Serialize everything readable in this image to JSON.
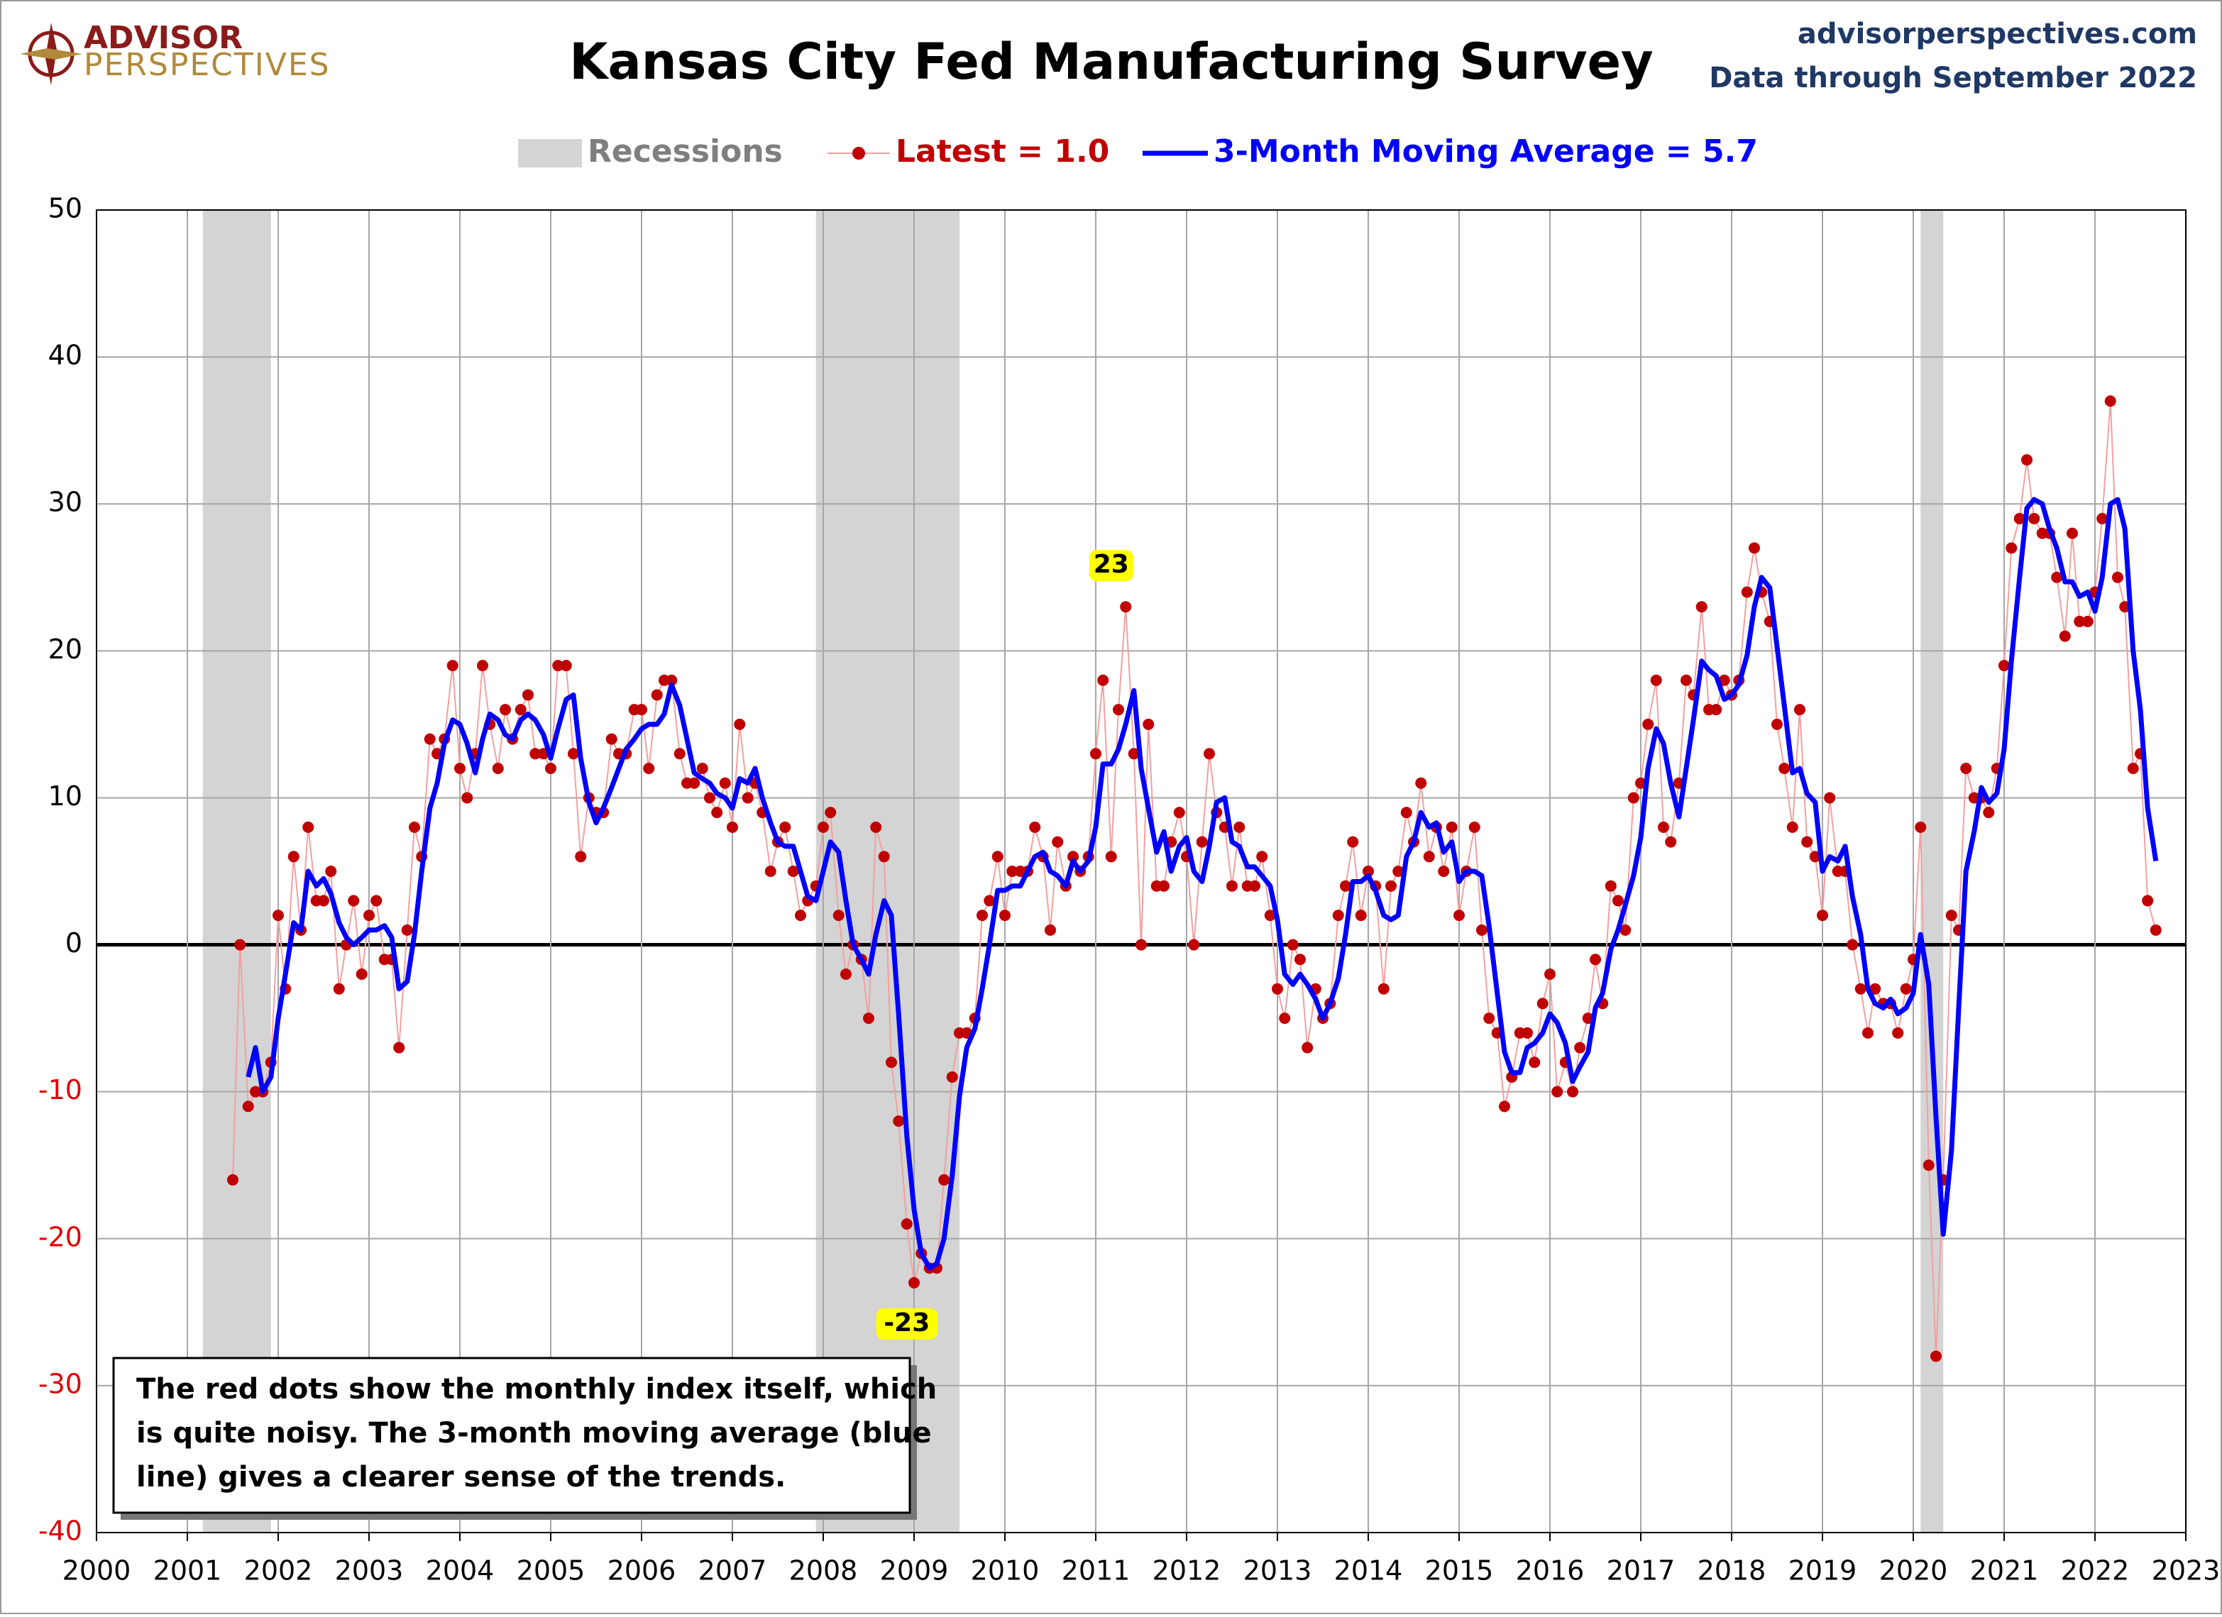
{
  "header": {
    "logo_top": "ADVISOR",
    "logo_bottom": "PERSPECTIVES",
    "site": "advisorperspectives.com",
    "data_note": "Data through September 2022"
  },
  "chart_data": {
    "type": "line",
    "title": "Kansas City Fed Manufacturing Survey",
    "xlim": [
      2000,
      2023
    ],
    "xticks": [
      2000,
      2001,
      2002,
      2003,
      2004,
      2005,
      2006,
      2007,
      2008,
      2009,
      2010,
      2011,
      2012,
      2013,
      2014,
      2015,
      2016,
      2017,
      2018,
      2019,
      2020,
      2021,
      2022,
      2023
    ],
    "ylim": [
      -40,
      50
    ],
    "yticks": [
      -40,
      -30,
      -20,
      -10,
      0,
      10,
      20,
      30,
      40,
      50
    ],
    "grid": true,
    "negative_tick_color": "#e00000",
    "recession_label": "Recessions",
    "recession_color": "#d4d4d4",
    "recessions": [
      [
        2001.17,
        2001.92
      ],
      [
        2007.92,
        2009.5
      ],
      [
        2020.08,
        2020.33
      ]
    ],
    "x": [
      2001.5,
      2001.58,
      2001.67,
      2001.75,
      2001.83,
      2001.92,
      2002,
      2002.08,
      2002.17,
      2002.25,
      2002.33,
      2002.42,
      2002.5,
      2002.58,
      2002.67,
      2002.75,
      2002.83,
      2002.92,
      2003,
      2003.08,
      2003.17,
      2003.25,
      2003.33,
      2003.42,
      2003.5,
      2003.58,
      2003.67,
      2003.75,
      2003.83,
      2003.92,
      2004,
      2004.08,
      2004.17,
      2004.25,
      2004.33,
      2004.42,
      2004.5,
      2004.58,
      2004.67,
      2004.75,
      2004.83,
      2004.92,
      2005,
      2005.08,
      2005.17,
      2005.25,
      2005.33,
      2005.42,
      2005.5,
      2005.58,
      2005.67,
      2005.75,
      2005.83,
      2005.92,
      2006,
      2006.08,
      2006.17,
      2006.25,
      2006.33,
      2006.42,
      2006.5,
      2006.58,
      2006.67,
      2006.75,
      2006.83,
      2006.92,
      2007,
      2007.08,
      2007.17,
      2007.25,
      2007.33,
      2007.42,
      2007.5,
      2007.58,
      2007.67,
      2007.75,
      2007.83,
      2007.92,
      2008,
      2008.08,
      2008.17,
      2008.25,
      2008.33,
      2008.42,
      2008.5,
      2008.58,
      2008.67,
      2008.75,
      2008.83,
      2008.92,
      2009,
      2009.08,
      2009.17,
      2009.25,
      2009.33,
      2009.42,
      2009.5,
      2009.58,
      2009.67,
      2009.75,
      2009.83,
      2009.92,
      2010,
      2010.08,
      2010.17,
      2010.25,
      2010.33,
      2010.42,
      2010.5,
      2010.58,
      2010.67,
      2010.75,
      2010.83,
      2010.92,
      2011,
      2011.08,
      2011.17,
      2011.25,
      2011.33,
      2011.42,
      2011.5,
      2011.58,
      2011.67,
      2011.75,
      2011.83,
      2011.92,
      2012,
      2012.08,
      2012.17,
      2012.25,
      2012.33,
      2012.42,
      2012.5,
      2012.58,
      2012.67,
      2012.75,
      2012.83,
      2012.92,
      2013,
      2013.08,
      2013.17,
      2013.25,
      2013.33,
      2013.42,
      2013.5,
      2013.58,
      2013.67,
      2013.75,
      2013.83,
      2013.92,
      2014,
      2014.08,
      2014.17,
      2014.25,
      2014.33,
      2014.42,
      2014.5,
      2014.58,
      2014.67,
      2014.75,
      2014.83,
      2014.92,
      2015,
      2015.08,
      2015.17,
      2015.25,
      2015.33,
      2015.42,
      2015.5,
      2015.58,
      2015.67,
      2015.75,
      2015.83,
      2015.92,
      2016,
      2016.08,
      2016.17,
      2016.25,
      2016.33,
      2016.42,
      2016.5,
      2016.58,
      2016.67,
      2016.75,
      2016.83,
      2016.92,
      2017,
      2017.08,
      2017.17,
      2017.25,
      2017.33,
      2017.42,
      2017.5,
      2017.58,
      2017.67,
      2017.75,
      2017.83,
      2017.92,
      2018,
      2018.08,
      2018.17,
      2018.25,
      2018.33,
      2018.42,
      2018.5,
      2018.58,
      2018.67,
      2018.75,
      2018.83,
      2018.92,
      2019,
      2019.08,
      2019.17,
      2019.25,
      2019.33,
      2019.42,
      2019.5,
      2019.58,
      2019.67,
      2019.75,
      2019.83,
      2019.92,
      2020,
      2020.08,
      2020.17,
      2020.25,
      2020.33,
      2020.42,
      2020.5,
      2020.58,
      2020.67,
      2020.75,
      2020.83,
      2020.92,
      2021,
      2021.08,
      2021.17,
      2021.25,
      2021.33,
      2021.42,
      2021.5,
      2021.58,
      2021.67,
      2021.75,
      2021.83,
      2021.92,
      2022,
      2022.08,
      2022.17,
      2022.25,
      2022.33,
      2022.42,
      2022.5,
      2022.58,
      2022.67
    ],
    "series": [
      {
        "name": "Latest = 1.0",
        "color": "#c00000",
        "line_color": "#f2a0a0",
        "values": [
          -16,
          0,
          -11,
          -10,
          -10,
          -8,
          2,
          -3,
          6,
          1,
          8,
          3,
          3,
          5,
          -3,
          0,
          3,
          -2,
          2,
          3,
          -1,
          -1,
          -7,
          1,
          8,
          6,
          14,
          13,
          14,
          19,
          12,
          10,
          13,
          19,
          15,
          12,
          16,
          14,
          16,
          17,
          13,
          13,
          12,
          19,
          19,
          13,
          6,
          10,
          9,
          9,
          14,
          13,
          13,
          16,
          16,
          12,
          17,
          18,
          18,
          13,
          11,
          11,
          12,
          10,
          9,
          11,
          8,
          15,
          10,
          11,
          9,
          5,
          7,
          8,
          5,
          2,
          3,
          4,
          8,
          9,
          2,
          -2,
          0,
          -1,
          -5,
          8,
          6,
          -8,
          -12,
          -19,
          -23,
          -21,
          -22,
          -22,
          -16,
          -9,
          -6,
          -6,
          -5,
          2,
          3,
          6,
          2,
          5,
          5,
          5,
          8,
          6,
          1,
          7,
          4,
          6,
          5,
          6,
          13,
          18,
          6,
          16,
          23,
          13,
          0,
          15,
          4,
          4,
          7,
          9,
          6,
          0,
          7,
          13,
          9,
          8,
          4,
          8,
          4,
          4,
          6,
          2,
          -3,
          -5,
          0,
          -1,
          -7,
          -3,
          -5,
          -4,
          2,
          4,
          7,
          2,
          5,
          4,
          -3,
          4,
          5,
          9,
          7,
          11,
          6,
          8,
          5,
          8,
          2,
          5,
          8,
          1,
          -5,
          -6,
          -11,
          -9,
          -6,
          -6,
          -8,
          -4,
          -2,
          -10,
          -8,
          -10,
          -7,
          -5,
          -1,
          -4,
          4,
          3,
          1,
          10,
          11,
          15,
          18,
          8,
          7,
          11,
          18,
          17,
          23,
          16,
          16,
          18,
          17,
          18,
          24,
          27,
          24,
          22,
          15,
          12,
          8,
          16,
          7,
          6,
          2,
          10,
          5,
          5,
          0,
          -3,
          -6,
          -3,
          -4,
          -4,
          -6,
          -3,
          -1,
          8,
          -15,
          -28,
          -16,
          2,
          1,
          12,
          10,
          10,
          9,
          12,
          19,
          27,
          29,
          33,
          29,
          28,
          28,
          25,
          21,
          28,
          22,
          22,
          24,
          29,
          37,
          25,
          23,
          12,
          13,
          3,
          1
        ]
      },
      {
        "name": "3-Month Moving Average = 5.7",
        "color": "#0000ff",
        "values": [
          null,
          null,
          -9,
          -7,
          -10,
          -9,
          -5,
          -2,
          1.5,
          1,
          5,
          4,
          4.5,
          3.5,
          1.5,
          0.5,
          0,
          0.5,
          1,
          1,
          1.3,
          0.5,
          -3,
          -2.5,
          0.7,
          5,
          9.3,
          11,
          13.7,
          15.3,
          15,
          13.7,
          11.7,
          14,
          15.7,
          15.3,
          14.3,
          14,
          15.3,
          15.7,
          15.3,
          14.3,
          12.7,
          14.7,
          16.7,
          17,
          12.7,
          9.7,
          8.3,
          9.3,
          10.7,
          12,
          13.3,
          14,
          14.7,
          15,
          15,
          15.7,
          17.7,
          16.3,
          14,
          11.7,
          11.3,
          11,
          10.3,
          10,
          9.3,
          11.3,
          11,
          12,
          10,
          8.3,
          7,
          6.7,
          6.7,
          5,
          3.3,
          3,
          5,
          7,
          6.3,
          3,
          0,
          -1,
          -2,
          0.7,
          3,
          2,
          -4.7,
          -13,
          -18,
          -21,
          -22,
          -21.7,
          -20,
          -15.7,
          -10.3,
          -7,
          -5.7,
          -3,
          0,
          3.7,
          3.7,
          4,
          4,
          5,
          6,
          6.3,
          5,
          4.7,
          4,
          5.7,
          5,
          5.7,
          8,
          12.3,
          12.3,
          13.3,
          15,
          17.3,
          12,
          9.3,
          6.3,
          7.7,
          5,
          6.7,
          7.3,
          5,
          4.3,
          6.7,
          9.7,
          10,
          7,
          6.7,
          5.3,
          5.3,
          4.7,
          4,
          1.7,
          -2,
          -2.7,
          -2,
          -2.7,
          -3.7,
          -5,
          -4,
          -2.3,
          0.7,
          4.3,
          4.3,
          4.7,
          3.7,
          2,
          1.7,
          2,
          6,
          7,
          9,
          8,
          8.3,
          6.3,
          7,
          4.3,
          5,
          5,
          4.7,
          1.3,
          -3.3,
          -7.3,
          -8.7,
          -8.7,
          -7,
          -6.7,
          -6,
          -4.7,
          -5.3,
          -6.7,
          -9.3,
          -8.3,
          -7.3,
          -4.3,
          -3.3,
          -0.3,
          1,
          2.7,
          4.7,
          7.3,
          12,
          14.7,
          13.7,
          11,
          8.7,
          12,
          15.3,
          19.3,
          18.7,
          18.3,
          16.7,
          17,
          17.7,
          19.7,
          23,
          25,
          24.3,
          20.3,
          16.3,
          11.7,
          12,
          10.3,
          9.7,
          5,
          6,
          5.7,
          6.7,
          3.3,
          0.7,
          -3,
          -4,
          -4.3,
          -3.7,
          -4.7,
          -4.3,
          -3.3,
          0.7,
          -2.7,
          -11.7,
          -19.7,
          -14,
          -4.3,
          5,
          7.7,
          10.7,
          9.7,
          10.3,
          13.3,
          19.3,
          25,
          29.7,
          30.3,
          30,
          28.3,
          27,
          24.7,
          24.7,
          23.7,
          24,
          22.7,
          25,
          30,
          30.3,
          28.3,
          20,
          16,
          9.3,
          5.7
        ]
      }
    ],
    "annotations": [
      {
        "label": "23",
        "x": 2011.17,
        "y": 23
      },
      {
        "label": "-23",
        "x": 2008.92,
        "y": -23
      }
    ],
    "note": [
      "The red dots show the monthly  index itself, which",
      "is quite noisy. The 3-month moving average (blue",
      "line) gives a clearer sense of the trends."
    ]
  }
}
